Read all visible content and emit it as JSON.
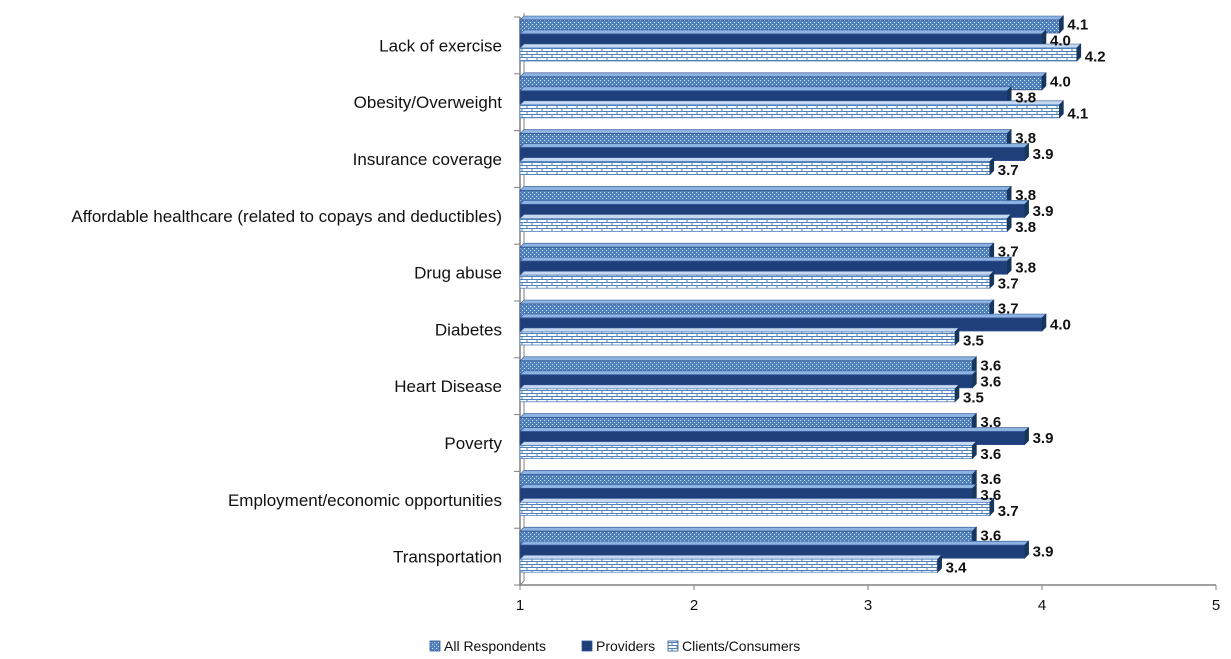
{
  "chart_data": {
    "type": "bar",
    "orientation": "horizontal",
    "style": "3d",
    "categories": [
      "Lack of exercise",
      "Obesity/Overweight",
      "Insurance coverage",
      "Affordable healthcare (related to copays and deductibles)",
      "Drug abuse",
      "Diabetes",
      "Heart Disease",
      "Poverty",
      "Employment/economic opportunities",
      "Transportation"
    ],
    "series": [
      {
        "name": "All Respondents",
        "color": "#4f81bd",
        "pattern": "stipple",
        "values": [
          4.1,
          4.0,
          3.8,
          3.8,
          3.7,
          3.7,
          3.6,
          3.6,
          3.6,
          3.6
        ],
        "labels": [
          "4.1",
          "4.0",
          "3.8",
          "3.8",
          "3.7",
          "3.7",
          "3.6",
          "3.6",
          "3.6",
          "3.6"
        ]
      },
      {
        "name": "Providers",
        "color": "#1f3f7a",
        "pattern": "solid",
        "values": [
          4.0,
          3.8,
          3.9,
          3.9,
          3.8,
          4.0,
          3.6,
          3.9,
          3.6,
          3.9
        ],
        "labels": [
          "4.0",
          "3.8",
          "3.9",
          "3.9",
          "3.8",
          "4.0",
          "3.6",
          "3.9",
          "3.6",
          "3.9"
        ]
      },
      {
        "name": "Clients/Consumers",
        "color": "#8db3e2",
        "pattern": "brick",
        "values": [
          4.2,
          4.1,
          3.7,
          3.8,
          3.7,
          3.5,
          3.5,
          3.6,
          3.7,
          3.4
        ],
        "labels": [
          "4.2",
          "4.1",
          "3.7",
          "3.8",
          "3.7",
          "3.5",
          "3.5",
          "3.6",
          "3.7",
          "3.4"
        ]
      }
    ],
    "xlim": [
      1,
      5
    ],
    "xticks": [
      "1",
      "2",
      "3",
      "4",
      "5"
    ],
    "grid": false,
    "legend_position": "bottom"
  }
}
